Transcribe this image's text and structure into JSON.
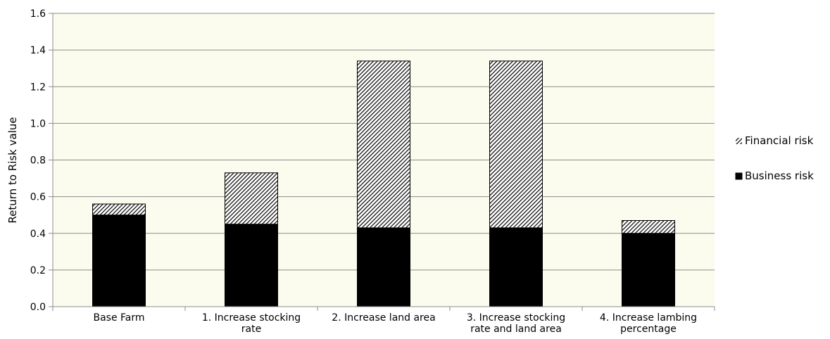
{
  "chart_data": {
    "type": "bar",
    "stacked": true,
    "title": "",
    "xlabel": "",
    "ylabel": "Return to Risk value",
    "ylim": [
      0,
      1.6
    ],
    "yticks": [
      "0.0",
      "0.2",
      "0.4",
      "0.6",
      "0.8",
      "1.0",
      "1.2",
      "1.4",
      "1.6"
    ],
    "grid": true,
    "legend_position": "right",
    "categories": [
      [
        "Base Farm"
      ],
      [
        "1. Increase stocking",
        "rate"
      ],
      [
        "2. Increase land area"
      ],
      [
        "3. Increase stocking",
        "rate and land area"
      ],
      [
        "4. Increase lambing",
        "percentage"
      ]
    ],
    "series": [
      {
        "name": "Business risk",
        "values": [
          0.5,
          0.45,
          0.43,
          0.43,
          0.4
        ],
        "color": "#000000",
        "pattern": "solid"
      },
      {
        "name": "Financial risk",
        "values": [
          0.06,
          0.28,
          0.91,
          0.91,
          0.07
        ],
        "color": "#000000",
        "pattern": "diagonal-hatch"
      }
    ],
    "plot_background": "#fcfcee",
    "legend_order": [
      "Financial risk",
      "Business risk"
    ]
  }
}
